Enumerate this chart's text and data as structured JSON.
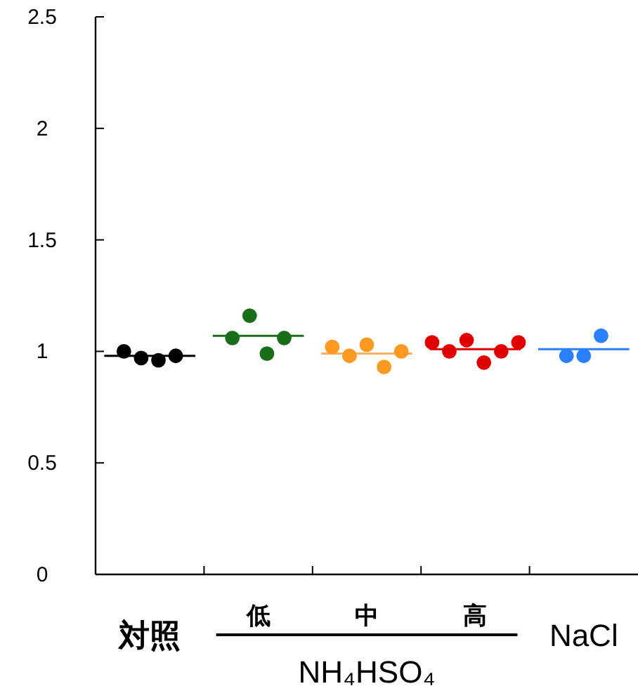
{
  "chart_data": {
    "type": "scatter",
    "categories": [
      "対照",
      "低",
      "中",
      "高",
      "NaCl"
    ],
    "ylim": [
      0,
      2.5
    ],
    "yticks": [
      0,
      0.5,
      1,
      1.5,
      2,
      2.5
    ],
    "grid": false,
    "annotations": [
      "NH₄HSO₄"
    ],
    "series": [
      {
        "type": "box",
        "colors": [
          "#000000",
          "#1a6e1a",
          "#ffb060",
          "#e00000",
          "#2a7fff"
        ],
        "boxes": [
          {
            "low": 0.98,
            "q1": 0.98,
            "median": 0.98,
            "q3": 0.98,
            "high": 0.98
          },
          {
            "low": 1.07,
            "q1": 1.07,
            "median": 1.07,
            "q3": 1.07,
            "high": 1.07
          },
          {
            "low": 0.99,
            "q1": 0.99,
            "median": 0.99,
            "q3": 0.99,
            "high": 0.99
          },
          {
            "low": 1.01,
            "q1": 1.01,
            "median": 1.01,
            "q3": 1.01,
            "high": 1.01
          },
          {
            "low": 1.01,
            "q1": 1.01,
            "median": 1.01,
            "q3": 1.01,
            "high": 1.01
          }
        ]
      },
      {
        "color": "#000000",
        "x": [
          "対照",
          "対照",
          "対照",
          "対照"
        ],
        "values": [
          1.0,
          0.97,
          0.96,
          0.98
        ]
      },
      {
        "color": "#1a6e1a",
        "x": [
          "低",
          "低",
          "低",
          "低"
        ],
        "values": [
          1.06,
          1.16,
          0.99,
          1.06
        ]
      },
      {
        "color": "#ff9922",
        "x": [
          "中",
          "中",
          "中",
          "中",
          "中"
        ],
        "values": [
          1.02,
          0.98,
          1.03,
          0.93,
          1.0
        ]
      },
      {
        "color": "#e00000",
        "x": [
          "高",
          "高",
          "高",
          "高",
          "高",
          "高"
        ],
        "values": [
          1.04,
          1.0,
          1.05,
          0.95,
          1.0,
          1.04
        ]
      },
      {
        "color": "#2a7fff",
        "x": [
          "NaCl",
          "NaCl",
          "NaCl"
        ],
        "values": [
          0.98,
          0.98,
          1.07
        ]
      }
    ]
  }
}
